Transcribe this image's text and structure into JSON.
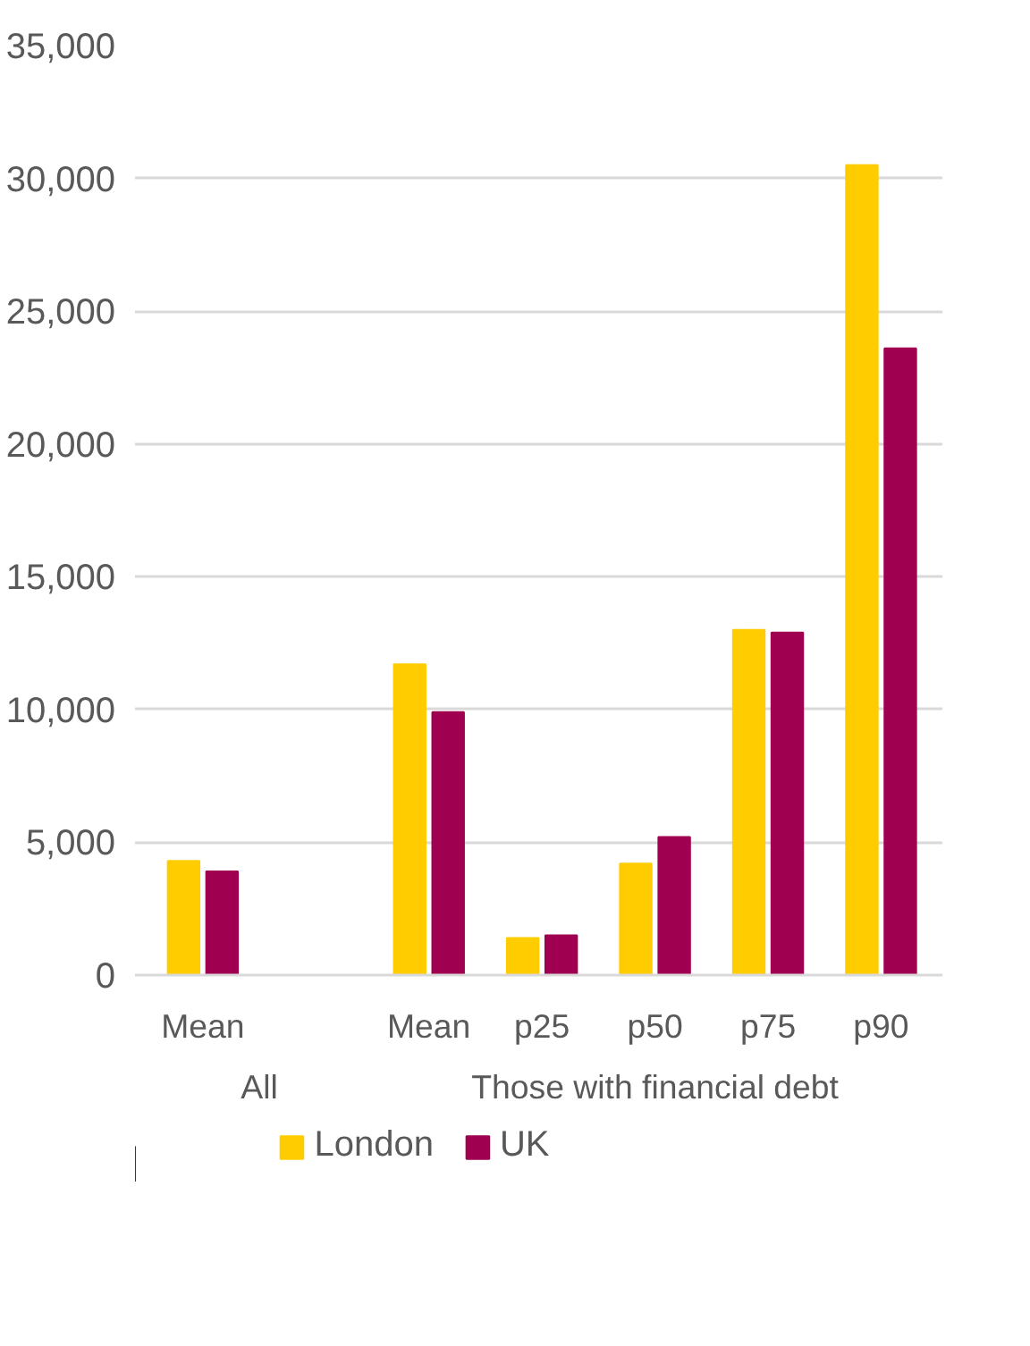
{
  "chart_data": {
    "type": "bar",
    "categories": [
      "Mean",
      null,
      "Mean",
      "p25",
      "p50",
      "p75",
      "p90"
    ],
    "series": [
      {
        "name": "London",
        "color": "#ffcc00",
        "values": [
          4300,
          null,
          11700,
          1400,
          4200,
          13000,
          30500
        ]
      },
      {
        "name": "UK",
        "color": "#a00050",
        "values": [
          3900,
          null,
          9900,
          1500,
          5200,
          12900,
          23600
        ]
      }
    ],
    "annotations": [
      "All",
      "Those with financial debt"
    ],
    "ylim": [
      0,
      35000
    ],
    "yticks": [
      {
        "value": 0,
        "label": "0"
      },
      {
        "value": 5000,
        "label": "5,000"
      },
      {
        "value": 10000,
        "label": "10,000"
      },
      {
        "value": 15000,
        "label": "15,000"
      },
      {
        "value": 20000,
        "label": "20,000"
      },
      {
        "value": 25000,
        "label": "25,000"
      },
      {
        "value": 30000,
        "label": "30,000"
      },
      {
        "value": 35000,
        "label": "35,000"
      }
    ],
    "grid": "y",
    "legend": "bottom"
  }
}
